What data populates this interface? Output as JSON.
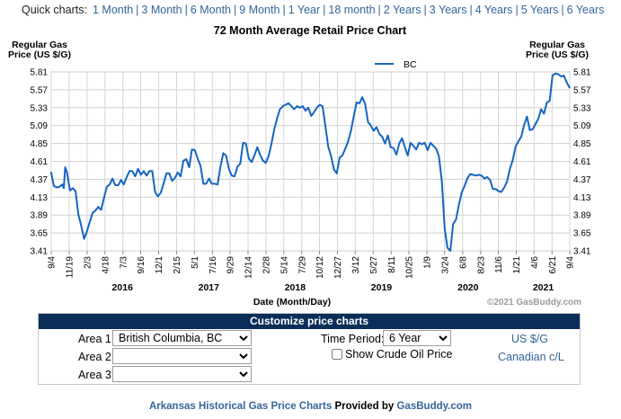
{
  "quick": {
    "label": "Quick charts:",
    "links": [
      "1 Month",
      "3 Month",
      "6 Month",
      "9 Month",
      "1 Year",
      "18 month",
      "2 Years",
      "3 Years",
      "4 Years",
      "5 Years",
      "6 Years"
    ]
  },
  "chart_data": {
    "type": "line",
    "title": "72 Month Average Retail Price Chart",
    "ylabel_left": "Regular Gas Price (US $/G)",
    "ylabel_right": "Regular Gas Price (US $/G)",
    "xlabel": "Date (Month/Day)",
    "copyright": "©2021 GasBuddy.com",
    "legend_position": "top",
    "ylim": [
      3.41,
      5.81
    ],
    "yticks": [
      "5.81",
      "5.57",
      "5.33",
      "5.09",
      "4.85",
      "4.61",
      "4.37",
      "4.13",
      "3.89",
      "3.65",
      "3.41"
    ],
    "x_range": [
      "2015-09-04",
      "2021-09-04"
    ],
    "xticks": [
      {
        "label": "9/4",
        "date": "2015-09-04"
      },
      {
        "label": "11/19",
        "date": "2015-11-19"
      },
      {
        "label": "2/3",
        "date": "2016-02-03"
      },
      {
        "label": "4/18",
        "date": "2016-04-18"
      },
      {
        "label": "7/3",
        "date": "2016-07-03"
      },
      {
        "label": "9/16",
        "date": "2016-09-16"
      },
      {
        "label": "12/1",
        "date": "2016-12-01"
      },
      {
        "label": "2/15",
        "date": "2017-02-15"
      },
      {
        "label": "5/1",
        "date": "2017-05-01"
      },
      {
        "label": "7/16",
        "date": "2017-07-16"
      },
      {
        "label": "9/29",
        "date": "2017-09-29"
      },
      {
        "label": "12/14",
        "date": "2017-12-14"
      },
      {
        "label": "2/28",
        "date": "2018-02-28"
      },
      {
        "label": "5/14",
        "date": "2018-05-14"
      },
      {
        "label": "7/29",
        "date": "2018-07-29"
      },
      {
        "label": "10/12",
        "date": "2018-10-12"
      },
      {
        "label": "12/27",
        "date": "2018-12-27"
      },
      {
        "label": "3/12",
        "date": "2019-03-12"
      },
      {
        "label": "5/27",
        "date": "2019-05-27"
      },
      {
        "label": "8/11",
        "date": "2019-08-11"
      },
      {
        "label": "10/25",
        "date": "2019-10-25"
      },
      {
        "label": "1/9",
        "date": "2020-01-09"
      },
      {
        "label": "3/24",
        "date": "2020-03-24"
      },
      {
        "label": "6/8",
        "date": "2020-06-08"
      },
      {
        "label": "8/23",
        "date": "2020-08-23"
      },
      {
        "label": "11/6",
        "date": "2020-11-06"
      },
      {
        "label": "1/21",
        "date": "2021-01-21"
      },
      {
        "label": "4/6",
        "date": "2021-04-06"
      },
      {
        "label": "6/21",
        "date": "2021-06-21"
      },
      {
        "label": "9/4",
        "date": "2021-09-04"
      }
    ],
    "year_labels": [
      {
        "label": "2016",
        "date": "2016-07-01"
      },
      {
        "label": "2017",
        "date": "2017-07-01"
      },
      {
        "label": "2018",
        "date": "2018-07-01"
      },
      {
        "label": "2019",
        "date": "2019-07-01"
      },
      {
        "label": "2020",
        "date": "2020-07-01"
      },
      {
        "label": "2021",
        "date": "2021-05-15"
      }
    ],
    "grid": true,
    "series": [
      {
        "name": "BC",
        "color": "#1565c0",
        "points": [
          [
            "2015-09-04",
            4.46
          ],
          [
            "2015-09-15",
            4.28
          ],
          [
            "2015-09-27",
            4.26
          ],
          [
            "2015-10-09",
            4.27
          ],
          [
            "2015-10-21",
            4.3
          ],
          [
            "2015-10-27",
            4.25
          ],
          [
            "2015-11-02",
            4.53
          ],
          [
            "2015-11-10",
            4.46
          ],
          [
            "2015-11-22",
            4.22
          ],
          [
            "2015-12-04",
            4.25
          ],
          [
            "2015-12-16",
            4.21
          ],
          [
            "2015-12-28",
            3.89
          ],
          [
            "2016-01-09",
            3.75
          ],
          [
            "2016-01-21",
            3.57
          ],
          [
            "2016-02-02",
            3.67
          ],
          [
            "2016-02-14",
            3.8
          ],
          [
            "2016-02-26",
            3.92
          ],
          [
            "2016-03-09",
            3.95
          ],
          [
            "2016-03-21",
            4.0
          ],
          [
            "2016-04-02",
            3.96
          ],
          [
            "2016-04-14",
            4.12
          ],
          [
            "2016-04-26",
            4.27
          ],
          [
            "2016-05-08",
            4.3
          ],
          [
            "2016-05-20",
            4.38
          ],
          [
            "2016-06-01",
            4.29
          ],
          [
            "2016-06-13",
            4.29
          ],
          [
            "2016-06-25",
            4.36
          ],
          [
            "2016-07-07",
            4.3
          ],
          [
            "2016-07-19",
            4.4
          ],
          [
            "2016-07-31",
            4.48
          ],
          [
            "2016-08-12",
            4.48
          ],
          [
            "2016-08-24",
            4.41
          ],
          [
            "2016-09-05",
            4.51
          ],
          [
            "2016-09-17",
            4.43
          ],
          [
            "2016-09-29",
            4.48
          ],
          [
            "2016-10-11",
            4.42
          ],
          [
            "2016-10-23",
            4.48
          ],
          [
            "2016-11-04",
            4.48
          ],
          [
            "2016-11-16",
            4.2
          ],
          [
            "2016-11-28",
            4.14
          ],
          [
            "2016-12-10",
            4.19
          ],
          [
            "2016-12-22",
            4.31
          ],
          [
            "2017-01-03",
            4.45
          ],
          [
            "2017-01-15",
            4.45
          ],
          [
            "2017-01-27",
            4.35
          ],
          [
            "2017-02-08",
            4.39
          ],
          [
            "2017-02-20",
            4.46
          ],
          [
            "2017-03-04",
            4.41
          ],
          [
            "2017-03-16",
            4.62
          ],
          [
            "2017-03-28",
            4.64
          ],
          [
            "2017-04-09",
            4.53
          ],
          [
            "2017-04-21",
            4.77
          ],
          [
            "2017-05-03",
            4.76
          ],
          [
            "2017-05-15",
            4.65
          ],
          [
            "2017-05-27",
            4.55
          ],
          [
            "2017-06-08",
            4.31
          ],
          [
            "2017-06-20",
            4.31
          ],
          [
            "2017-07-02",
            4.38
          ],
          [
            "2017-07-14",
            4.31
          ],
          [
            "2017-07-26",
            4.31
          ],
          [
            "2017-08-07",
            4.3
          ],
          [
            "2017-08-19",
            4.53
          ],
          [
            "2017-08-31",
            4.72
          ],
          [
            "2017-09-12",
            4.69
          ],
          [
            "2017-09-24",
            4.51
          ],
          [
            "2017-10-06",
            4.42
          ],
          [
            "2017-10-18",
            4.41
          ],
          [
            "2017-10-30",
            4.54
          ],
          [
            "2017-11-11",
            4.58
          ],
          [
            "2017-11-23",
            4.86
          ],
          [
            "2017-12-05",
            4.85
          ],
          [
            "2017-12-17",
            4.65
          ],
          [
            "2017-12-29",
            4.6
          ],
          [
            "2018-01-10",
            4.69
          ],
          [
            "2018-01-22",
            4.8
          ],
          [
            "2018-02-03",
            4.7
          ],
          [
            "2018-02-15",
            4.62
          ],
          [
            "2018-02-27",
            4.59
          ],
          [
            "2018-03-11",
            4.68
          ],
          [
            "2018-03-23",
            4.85
          ],
          [
            "2018-04-04",
            5.04
          ],
          [
            "2018-04-16",
            5.19
          ],
          [
            "2018-04-28",
            5.31
          ],
          [
            "2018-05-10",
            5.35
          ],
          [
            "2018-05-22",
            5.37
          ],
          [
            "2018-06-03",
            5.39
          ],
          [
            "2018-06-15",
            5.35
          ],
          [
            "2018-06-27",
            5.31
          ],
          [
            "2018-07-09",
            5.35
          ],
          [
            "2018-07-21",
            5.33
          ],
          [
            "2018-08-02",
            5.35
          ],
          [
            "2018-08-14",
            5.29
          ],
          [
            "2018-08-26",
            5.33
          ],
          [
            "2018-09-07",
            5.22
          ],
          [
            "2018-09-19",
            5.27
          ],
          [
            "2018-10-01",
            5.33
          ],
          [
            "2018-10-13",
            5.37
          ],
          [
            "2018-10-25",
            5.35
          ],
          [
            "2018-11-06",
            5.08
          ],
          [
            "2018-11-18",
            4.81
          ],
          [
            "2018-11-30",
            4.68
          ],
          [
            "2018-12-12",
            4.5
          ],
          [
            "2018-12-24",
            4.45
          ],
          [
            "2019-01-05",
            4.66
          ],
          [
            "2019-01-17",
            4.69
          ],
          [
            "2019-01-29",
            4.78
          ],
          [
            "2019-02-10",
            4.88
          ],
          [
            "2019-02-22",
            5.02
          ],
          [
            "2019-03-06",
            5.22
          ],
          [
            "2019-03-18",
            5.4
          ],
          [
            "2019-03-30",
            5.39
          ],
          [
            "2019-04-11",
            5.47
          ],
          [
            "2019-04-23",
            5.38
          ],
          [
            "2019-05-05",
            5.14
          ],
          [
            "2019-05-17",
            5.09
          ],
          [
            "2019-05-29",
            5.02
          ],
          [
            "2019-06-10",
            5.07
          ],
          [
            "2019-06-22",
            4.98
          ],
          [
            "2019-07-04",
            4.94
          ],
          [
            "2019-07-16",
            4.85
          ],
          [
            "2019-07-28",
            4.96
          ],
          [
            "2019-08-09",
            4.8
          ],
          [
            "2019-08-21",
            4.79
          ],
          [
            "2019-09-02",
            4.7
          ],
          [
            "2019-09-14",
            4.85
          ],
          [
            "2019-09-26",
            4.92
          ],
          [
            "2019-10-08",
            4.8
          ],
          [
            "2019-10-20",
            4.69
          ],
          [
            "2019-11-01",
            4.86
          ],
          [
            "2019-11-13",
            4.82
          ],
          [
            "2019-11-25",
            4.77
          ],
          [
            "2019-12-07",
            4.86
          ],
          [
            "2019-12-19",
            4.84
          ],
          [
            "2019-12-31",
            4.86
          ],
          [
            "2020-01-12",
            4.76
          ],
          [
            "2020-01-24",
            4.86
          ],
          [
            "2020-02-05",
            4.82
          ],
          [
            "2020-02-17",
            4.78
          ],
          [
            "2020-02-29",
            4.68
          ],
          [
            "2020-03-12",
            4.35
          ],
          [
            "2020-03-24",
            3.71
          ],
          [
            "2020-04-05",
            3.45
          ],
          [
            "2020-04-17",
            3.41
          ],
          [
            "2020-04-29",
            3.77
          ],
          [
            "2020-05-11",
            3.83
          ],
          [
            "2020-05-23",
            4.02
          ],
          [
            "2020-06-04",
            4.19
          ],
          [
            "2020-06-16",
            4.28
          ],
          [
            "2020-06-28",
            4.38
          ],
          [
            "2020-07-10",
            4.44
          ],
          [
            "2020-07-22",
            4.43
          ],
          [
            "2020-08-03",
            4.42
          ],
          [
            "2020-08-15",
            4.43
          ],
          [
            "2020-08-27",
            4.42
          ],
          [
            "2020-09-08",
            4.38
          ],
          [
            "2020-09-20",
            4.4
          ],
          [
            "2020-10-02",
            4.36
          ],
          [
            "2020-10-14",
            4.24
          ],
          [
            "2020-10-26",
            4.24
          ],
          [
            "2020-11-07",
            4.21
          ],
          [
            "2020-11-19",
            4.2
          ],
          [
            "2020-12-01",
            4.26
          ],
          [
            "2020-12-13",
            4.34
          ],
          [
            "2020-12-25",
            4.51
          ],
          [
            "2021-01-06",
            4.63
          ],
          [
            "2021-01-18",
            4.81
          ],
          [
            "2021-01-30",
            4.88
          ],
          [
            "2021-02-11",
            4.94
          ],
          [
            "2021-02-23",
            5.1
          ],
          [
            "2021-03-07",
            5.21
          ],
          [
            "2021-03-19",
            5.03
          ],
          [
            "2021-03-31",
            5.04
          ],
          [
            "2021-04-12",
            5.11
          ],
          [
            "2021-04-24",
            5.18
          ],
          [
            "2021-05-06",
            5.31
          ],
          [
            "2021-05-18",
            5.25
          ],
          [
            "2021-05-30",
            5.4
          ],
          [
            "2021-06-11",
            5.42
          ],
          [
            "2021-06-23",
            5.76
          ],
          [
            "2021-07-05",
            5.79
          ],
          [
            "2021-07-17",
            5.78
          ],
          [
            "2021-07-29",
            5.75
          ],
          [
            "2021-08-10",
            5.76
          ],
          [
            "2021-08-22",
            5.67
          ],
          [
            "2021-09-03",
            5.6
          ]
        ]
      }
    ]
  },
  "customize": {
    "title": "Customize price charts",
    "area1_label": "Area 1:",
    "area1_value": "British Columbia, BC",
    "area2_label": "Area 2:",
    "area2_value": "",
    "area3_label": "Area 3:",
    "area3_value": "",
    "time_period_label": "Time Period:",
    "time_period_value": "6 Year",
    "crude_label": "Show Crude Oil Price",
    "unit_us": "US $/G",
    "unit_ca": "Canadian c/L"
  },
  "footer": {
    "text": "Arkansas Historical Gas Price Charts",
    "provided": "Provided by",
    "link": "GasBuddy.com"
  }
}
